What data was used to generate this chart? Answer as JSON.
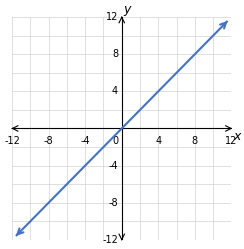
{
  "xlim": [
    -12,
    12
  ],
  "ylim": [
    -12,
    12
  ],
  "line_x": [
    -11.5,
    11.5
  ],
  "line_y": [
    -11.5,
    11.5
  ],
  "line_color": "#4472c4",
  "line_width": 1.5,
  "grid_color": "#d3d3d3",
  "background_color": "#ffffff",
  "axis_color": "#000000",
  "xlabel": "x",
  "ylabel": "y",
  "tick_label_fontsize": 7,
  "axis_label_fontsize": 9,
  "tick_positions": [
    -12,
    -8,
    -4,
    4,
    8,
    12
  ]
}
